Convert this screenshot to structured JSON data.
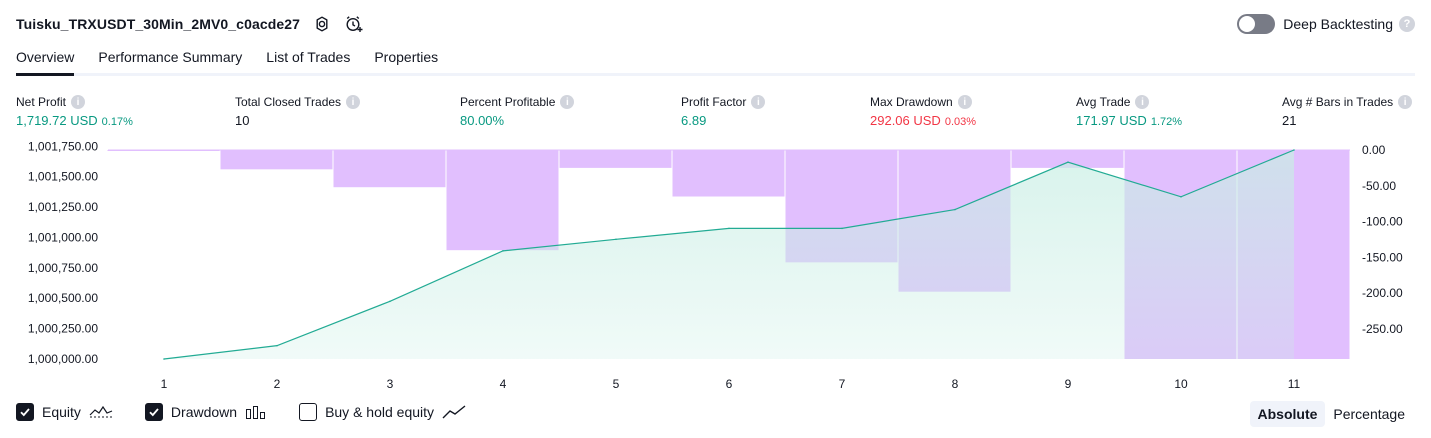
{
  "header": {
    "title": "Tuisku_TRXUSDT_30Min_2MV0_c0acde27",
    "deep_backtesting_label": "Deep Backtesting",
    "help_glyph": "?"
  },
  "tabs": [
    {
      "label": "Overview",
      "active": true
    },
    {
      "label": "Performance Summary",
      "active": false
    },
    {
      "label": "List of Trades",
      "active": false
    },
    {
      "label": "Properties",
      "active": false
    }
  ],
  "stats": {
    "net_profit": {
      "label": "Net Profit",
      "value": "1,719.72 USD",
      "pct": "0.17%"
    },
    "total_closed_trades": {
      "label": "Total Closed Trades",
      "value": "10"
    },
    "percent_profitable": {
      "label": "Percent Profitable",
      "value": "80.00%"
    },
    "profit_factor": {
      "label": "Profit Factor",
      "value": "6.89"
    },
    "max_drawdown": {
      "label": "Max Drawdown",
      "value": "292.06 USD",
      "pct": "0.03%"
    },
    "avg_trade": {
      "label": "Avg Trade",
      "value": "171.97 USD",
      "pct": "1.72%"
    },
    "avg_bars": {
      "label": "Avg # Bars in Trades",
      "value": "21"
    },
    "info_glyph": "i"
  },
  "chart_data": {
    "type": "area",
    "x": [
      1,
      2,
      3,
      4,
      5,
      6,
      7,
      8,
      9,
      10,
      11
    ],
    "x_tick_labels": [
      "1",
      "2",
      "3",
      "4",
      "5",
      "6",
      "7",
      "8",
      "9",
      "10",
      "11"
    ],
    "series": [
      {
        "name": "Equity",
        "type": "area",
        "axis": "left",
        "values": [
          1000000,
          1000110,
          1000475,
          1000890,
          1000985,
          1001075,
          1001075,
          1001230,
          1001620,
          1001335,
          1001720
        ]
      },
      {
        "name": "Drawdown",
        "type": "bar",
        "axis": "right",
        "values": [
          0,
          -27,
          -52,
          -140,
          -25,
          -65,
          -157,
          -198,
          -25,
          -292.06,
          -292.06
        ]
      }
    ],
    "left_axis": {
      "min": 1000000,
      "max": 1001720,
      "ticks": [
        1000000,
        1000250,
        1000500,
        1000750,
        1001000,
        1001250,
        1001500,
        1001750
      ],
      "tick_labels": [
        "1,000,000.00",
        "1,000,250.00",
        "1,000,500.00",
        "1,000,750.00",
        "1,001,000.00",
        "1,001,250.00",
        "1,001,500.00",
        "1,001,750.00"
      ]
    },
    "right_axis": {
      "min": -292.06,
      "max": 0,
      "ticks": [
        0,
        -50,
        -100,
        -150,
        -200,
        -250
      ],
      "tick_labels": [
        "0.00",
        "-50.00",
        "-100.00",
        "-150.00",
        "-200.00",
        "-250.00"
      ]
    },
    "colors": {
      "equity_line": "#22ab94",
      "equity_fill": "#c8eee4",
      "drawdown_bar": "#e1bffe",
      "drawdown_overlap": "#aeb6e8"
    },
    "grid": false
  },
  "legend": {
    "equity": {
      "label": "Equity",
      "checked": true,
      "icon": "equity-wave-icon"
    },
    "drawdown": {
      "label": "Drawdown",
      "checked": true,
      "icon": "drawdown-bars-icon"
    },
    "buy_hold": {
      "label": "Buy & hold equity",
      "checked": false,
      "icon": "buy-hold-line-icon"
    }
  },
  "mode": {
    "absolute": "Absolute",
    "percentage": "Percentage",
    "selected": "Absolute"
  }
}
